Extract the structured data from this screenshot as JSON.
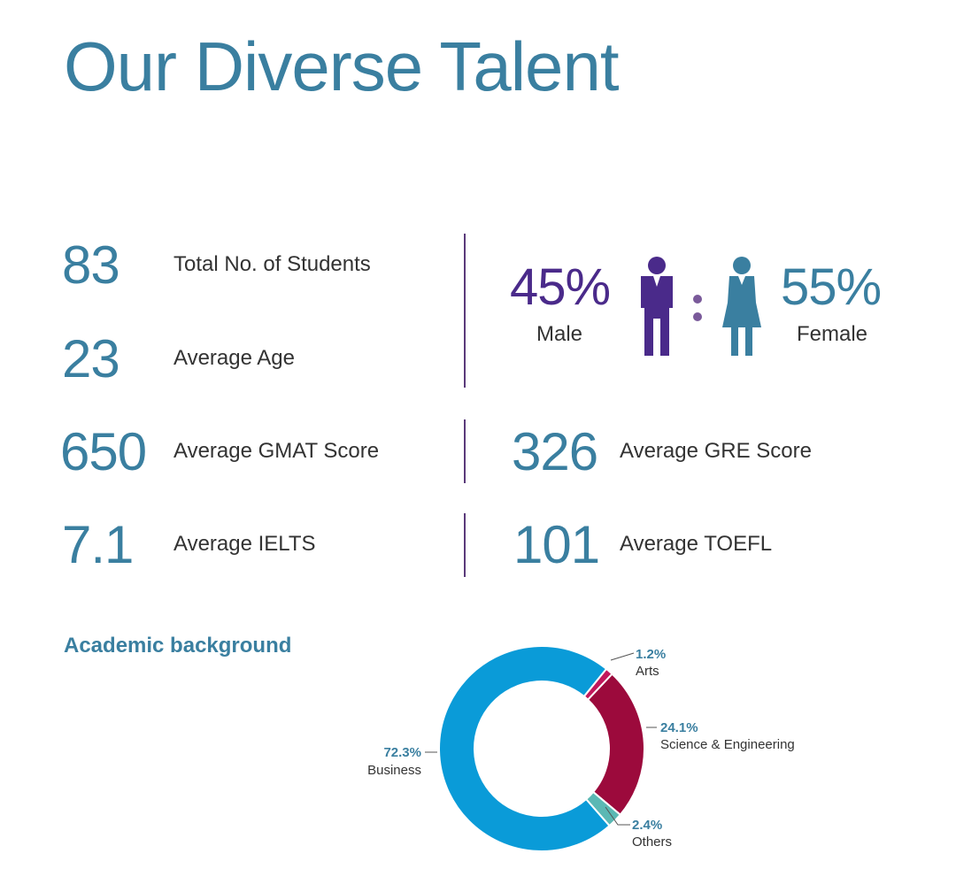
{
  "title": "Our Diverse Talent",
  "stats": {
    "students": {
      "value": "83",
      "label": "Total No. of Students"
    },
    "age": {
      "value": "23",
      "label": "Average Age"
    },
    "gmat": {
      "value": "650",
      "label": "Average GMAT Score"
    },
    "gre": {
      "value": "326",
      "label": "Average GRE Score"
    },
    "ielts": {
      "value": "7.1",
      "label": "Average IELTS"
    },
    "toefl": {
      "value": "101",
      "label": "Average TOEFL"
    }
  },
  "gender": {
    "male": {
      "value": "45%",
      "label": "Male",
      "color": "#4a2a8a"
    },
    "female": {
      "value": "55%",
      "label": "Female",
      "color": "#3a7fa0"
    },
    "male_icon": "male-person-icon",
    "female_icon": "female-person-icon",
    "separator_icon": "ratio-colon-icon"
  },
  "academic": {
    "title": "Academic background",
    "chart_data": {
      "type": "pie",
      "donut": true,
      "segments": [
        {
          "name": "Arts",
          "value": 1.2,
          "label": "1.2%",
          "color": "#c2185b"
        },
        {
          "name": "Science & Engineering",
          "value": 24.1,
          "label": "24.1%",
          "color": "#9c0a3c"
        },
        {
          "name": "Others",
          "value": 2.4,
          "label": "2.4%",
          "color": "#5bb8b4"
        },
        {
          "name": "Business",
          "value": 72.3,
          "label": "72.3%",
          "color": "#0a9bd8"
        }
      ]
    }
  }
}
